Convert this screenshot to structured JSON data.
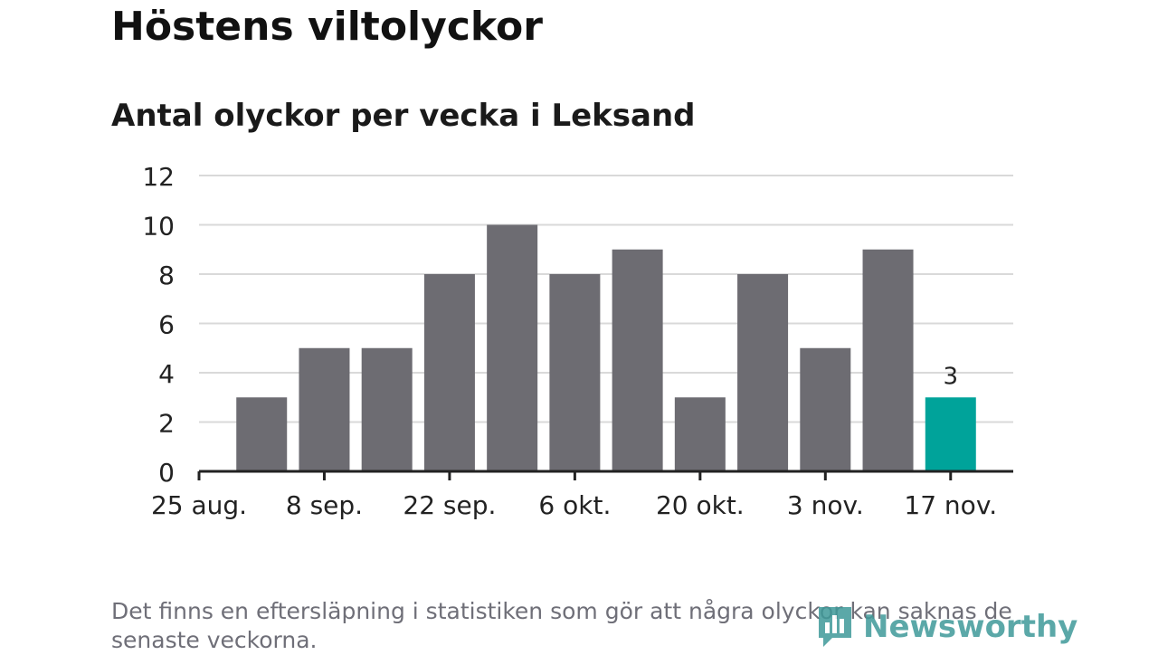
{
  "header": {
    "title": "Höstens viltolyckor",
    "subtitle": "Antal olyckor per vecka i Leksand"
  },
  "chart_data": {
    "type": "bar",
    "title": "Höstens viltolyckor",
    "subtitle": "Antal olyckor per vecka i Leksand",
    "xlabel": "",
    "ylabel": "",
    "x_tick_labels": [
      "25 aug.",
      "8 sep.",
      "22 sep.",
      "6 okt.",
      "20 okt.",
      "3 nov.",
      "17 nov."
    ],
    "values": [
      3,
      5,
      5,
      8,
      10,
      8,
      9,
      3,
      8,
      5,
      9,
      3
    ],
    "ylim": [
      0,
      12
    ],
    "yticks": [
      0,
      2,
      4,
      6,
      8,
      10,
      12
    ],
    "grid": true,
    "bar_color": "#6d6c72",
    "highlight_color": "#00a39a",
    "highlight_index": 11,
    "data_labels": [
      {
        "index": 11,
        "text": "3"
      }
    ]
  },
  "footer": {
    "note": "Det finns en eftersläpning i statistiken som gör att några olyckor kan saknas de senaste veckorna.",
    "logo_text": "Newsworthy",
    "logo_icon": "bar-chart-speech-icon"
  }
}
